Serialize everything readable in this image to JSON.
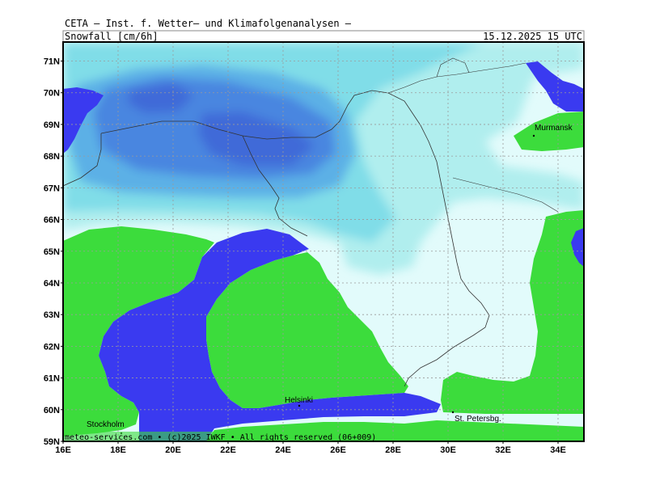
{
  "header": {
    "source": "CETA — Inst. f. Wetter— und Klimafolgenanalysen —",
    "variable": "Snowfall [cm/6h]",
    "valid_time": "15.12.2025 15 UTC"
  },
  "axes": {
    "lat_labels": [
      "59N",
      "60N",
      "61N",
      "62N",
      "63N",
      "64N",
      "65N",
      "66N",
      "67N",
      "68N",
      "69N",
      "70N",
      "71N"
    ],
    "lon_labels": [
      "16E",
      "18E",
      "20E",
      "22E",
      "24E",
      "26E",
      "28E",
      "30E",
      "32E",
      "34E"
    ]
  },
  "cities": {
    "murmansk": "Murmansk",
    "helsinki": "Helsinki",
    "stockholm": "Stockholm",
    "st_petersburg": "St. Petersbg."
  },
  "footer": "meteo-services.com • (c)2025 IWKF • All rights reserved (06+009)",
  "colors": {
    "sea": "#3a3af0",
    "land": "#3cdc3c",
    "snow_1": "#e2fbfb",
    "snow_2": "#b0eeee",
    "snow_3": "#80dde8",
    "snow_4": "#5cb0e6",
    "snow_5": "#4a86e0",
    "snow_6": "#3f6ad8"
  }
}
